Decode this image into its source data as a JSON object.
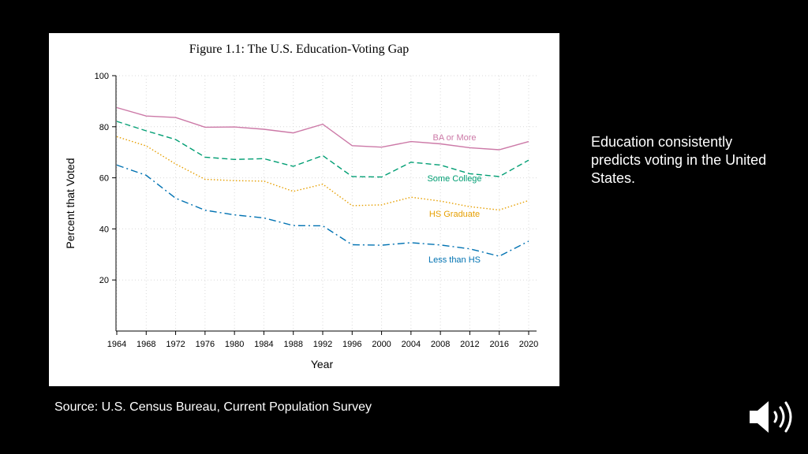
{
  "slide": {
    "side_text": "Education consistently predicts voting in the United States.",
    "source": "Source: U.S. Census Bureau, Current Population Survey"
  },
  "icons": {
    "speaker": "speaker-icon"
  },
  "chart_data": {
    "type": "line",
    "title": "Figure 1.1: The U.S. Education-Voting Gap",
    "xlabel": "Year",
    "ylabel": "Percent that Voted",
    "categories": [
      "1964",
      "1968",
      "1972",
      "1976",
      "1980",
      "1984",
      "1988",
      "1992",
      "1996",
      "2000",
      "2004",
      "2008",
      "2012",
      "2016",
      "2020"
    ],
    "ylim": [
      0,
      100
    ],
    "yticks": [
      20,
      40,
      60,
      80,
      100
    ],
    "grid": true,
    "series": [
      {
        "name": "BA or More",
        "color": "#cc79a7",
        "dash": "solid",
        "values": [
          87.5,
          84.2,
          83.6,
          79.8,
          79.9,
          79.0,
          77.6,
          81.0,
          72.6,
          72.0,
          74.2,
          73.3,
          71.8,
          71.0,
          74.2
        ]
      },
      {
        "name": "Some College",
        "color": "#009e73",
        "dash": "dashed",
        "values": [
          82.1,
          78.4,
          75.0,
          68.1,
          67.2,
          67.5,
          64.5,
          68.7,
          60.5,
          60.3,
          66.1,
          65.0,
          61.6,
          60.5,
          66.9
        ]
      },
      {
        "name": "HS Graduate",
        "color": "#e69f00",
        "dash": "dotted",
        "values": [
          76.1,
          72.5,
          65.4,
          59.4,
          58.9,
          58.7,
          54.7,
          57.5,
          49.1,
          49.4,
          52.4,
          50.9,
          48.7,
          47.4,
          51.1
        ]
      },
      {
        "name": "Less than HS",
        "color": "#0072b2",
        "dash": "dashdot",
        "values": [
          65.0,
          61.0,
          52.0,
          47.3,
          45.5,
          44.3,
          41.3,
          41.2,
          33.8,
          33.6,
          34.6,
          33.7,
          32.2,
          29.3,
          35.2
        ]
      }
    ],
    "labels": [
      {
        "text": "BA or More",
        "series": "BA or More"
      },
      {
        "text": "Some College",
        "series": "Some College"
      },
      {
        "text": "HS Graduate",
        "series": "HS Graduate"
      },
      {
        "text": "Less than HS",
        "series": "Less than HS"
      }
    ]
  }
}
